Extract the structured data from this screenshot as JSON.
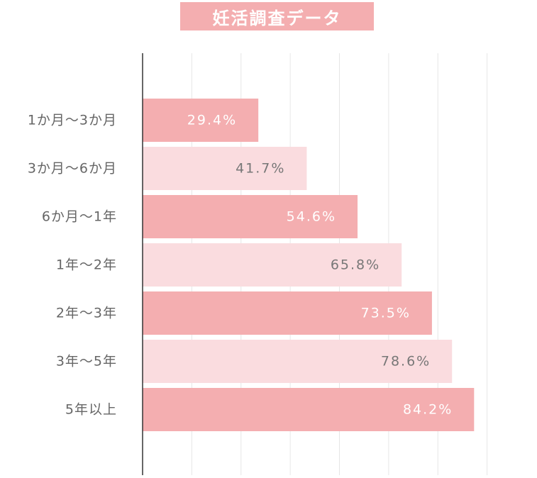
{
  "chart_data": {
    "type": "bar",
    "orientation": "horizontal",
    "title": "妊活調査データ",
    "categories": [
      "1か月～3か月",
      "3か月～6か月",
      "6か月～1年",
      "1年～2年",
      "2年～3年",
      "3年～5年",
      "5年以上"
    ],
    "values": [
      29.4,
      41.7,
      54.6,
      65.8,
      73.5,
      78.6,
      84.2
    ],
    "value_labels": [
      "29.4%",
      "41.7%",
      "54.6%",
      "65.8%",
      "73.5%",
      "78.6%",
      "84.2%"
    ],
    "xlim": [
      0,
      100
    ],
    "grid": true,
    "colors": {
      "dark": "#f4aeb0",
      "light": "#fadcdf",
      "label_on_dark": "#ffffff",
      "label_on_light": "#777777",
      "axis": "#333333",
      "grid": "#e6e6e6",
      "title_bg": "#f4aeb0"
    }
  }
}
